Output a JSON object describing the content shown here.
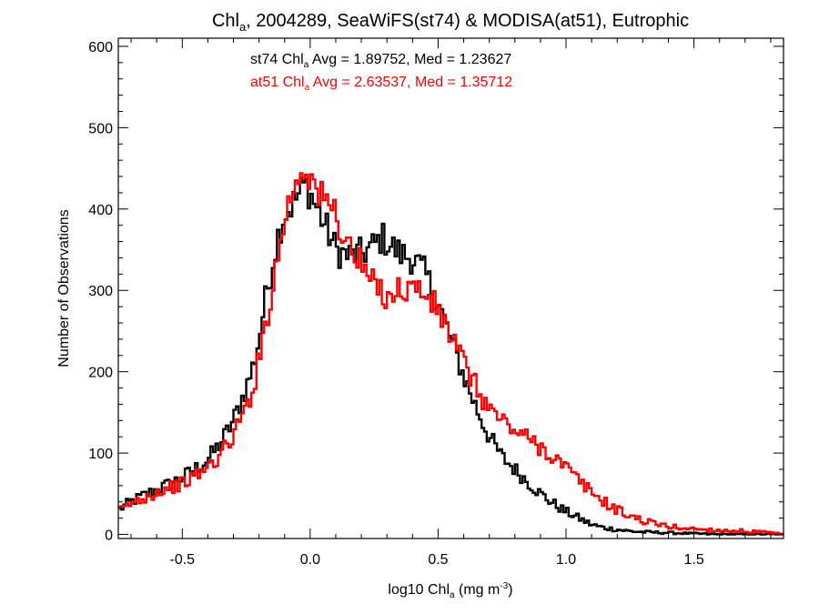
{
  "chart_data": {
    "type": "histogram",
    "title": {
      "prefix": "Chl",
      "sub": "a",
      "suffix": ", 2004289, SeaWiFS(st74) & MODISA(at51), Eutrophic"
    },
    "xlabel": {
      "prefix": "log10 Chl",
      "sub": "a",
      "mid": " (mg m",
      "sup": "-3",
      "suffix": ")"
    },
    "ylabel": "Number of Observations",
    "xlim": [
      -0.75,
      1.85
    ],
    "ylim": [
      -5,
      610
    ],
    "x_ticks": [
      -0.5,
      0.0,
      0.5,
      1.0,
      1.5
    ],
    "x_tick_labels": [
      "-0.5",
      "0.0",
      "0.5",
      "1.0",
      "1.5"
    ],
    "y_ticks": [
      0,
      100,
      200,
      300,
      400,
      500,
      600
    ],
    "y_tick_labels": [
      "0",
      "100",
      "200",
      "300",
      "400",
      "500",
      "600"
    ],
    "annotations": [
      {
        "color": "#000000",
        "prefix": "st74 Chl",
        "sub": "a",
        "suffix": " Avg = 1.89752, Med = 1.23627"
      },
      {
        "color": "#ff0000",
        "prefix": "at51 Chl",
        "sub": "a",
        "suffix": " Avg = 2.63537, Med = 1.35712"
      }
    ],
    "bin_width": 0.01,
    "series": [
      {
        "color": "#000000",
        "points": [
          [
            -0.75,
            30
          ],
          [
            -0.7,
            40
          ],
          [
            -0.65,
            48
          ],
          [
            -0.6,
            55
          ],
          [
            -0.55,
            62
          ],
          [
            -0.5,
            70
          ],
          [
            -0.45,
            80
          ],
          [
            -0.4,
            92
          ],
          [
            -0.35,
            112
          ],
          [
            -0.3,
            140
          ],
          [
            -0.25,
            180
          ],
          [
            -0.22,
            210
          ],
          [
            -0.2,
            240
          ],
          [
            -0.18,
            280
          ],
          [
            -0.15,
            330
          ],
          [
            -0.12,
            375
          ],
          [
            -0.1,
            395
          ],
          [
            -0.07,
            405
          ],
          [
            -0.04,
            420
          ],
          [
            -0.02,
            430
          ],
          [
            0.0,
            420
          ],
          [
            0.02,
            405
          ],
          [
            0.05,
            385
          ],
          [
            0.08,
            365
          ],
          [
            0.1,
            350
          ],
          [
            0.15,
            342
          ],
          [
            0.2,
            345
          ],
          [
            0.25,
            355
          ],
          [
            0.28,
            365
          ],
          [
            0.3,
            360
          ],
          [
            0.35,
            345
          ],
          [
            0.4,
            340
          ],
          [
            0.45,
            320
          ],
          [
            0.5,
            285
          ],
          [
            0.55,
            240
          ],
          [
            0.6,
            195
          ],
          [
            0.65,
            155
          ],
          [
            0.7,
            120
          ],
          [
            0.75,
            95
          ],
          [
            0.8,
            80
          ],
          [
            0.85,
            65
          ],
          [
            0.9,
            50
          ],
          [
            0.95,
            38
          ],
          [
            1.0,
            28
          ],
          [
            1.05,
            20
          ],
          [
            1.1,
            12
          ],
          [
            1.15,
            8
          ],
          [
            1.2,
            6
          ],
          [
            1.25,
            4
          ],
          [
            1.3,
            3
          ],
          [
            1.4,
            2
          ],
          [
            1.5,
            1
          ],
          [
            1.6,
            0
          ],
          [
            1.85,
            0
          ]
        ]
      },
      {
        "color": "#ff0000",
        "points": [
          [
            -0.75,
            28
          ],
          [
            -0.7,
            38
          ],
          [
            -0.65,
            45
          ],
          [
            -0.6,
            52
          ],
          [
            -0.55,
            58
          ],
          [
            -0.5,
            62
          ],
          [
            -0.45,
            72
          ],
          [
            -0.4,
            82
          ],
          [
            -0.35,
            98
          ],
          [
            -0.3,
            122
          ],
          [
            -0.25,
            155
          ],
          [
            -0.22,
            185
          ],
          [
            -0.2,
            215
          ],
          [
            -0.18,
            250
          ],
          [
            -0.15,
            300
          ],
          [
            -0.12,
            350
          ],
          [
            -0.1,
            390
          ],
          [
            -0.07,
            420
          ],
          [
            -0.05,
            440
          ],
          [
            -0.02,
            455
          ],
          [
            0.0,
            440
          ],
          [
            0.03,
            420
          ],
          [
            0.05,
            410
          ],
          [
            0.08,
            405
          ],
          [
            0.1,
            395
          ],
          [
            0.12,
            375
          ],
          [
            0.15,
            355
          ],
          [
            0.2,
            330
          ],
          [
            0.25,
            305
          ],
          [
            0.3,
            295
          ],
          [
            0.35,
            300
          ],
          [
            0.4,
            305
          ],
          [
            0.45,
            295
          ],
          [
            0.5,
            275
          ],
          [
            0.55,
            245
          ],
          [
            0.6,
            210
          ],
          [
            0.65,
            180
          ],
          [
            0.7,
            155
          ],
          [
            0.75,
            140
          ],
          [
            0.8,
            128
          ],
          [
            0.85,
            118
          ],
          [
            0.9,
            108
          ],
          [
            0.95,
            96
          ],
          [
            1.0,
            82
          ],
          [
            1.05,
            66
          ],
          [
            1.1,
            52
          ],
          [
            1.15,
            40
          ],
          [
            1.2,
            30
          ],
          [
            1.25,
            23
          ],
          [
            1.3,
            17
          ],
          [
            1.35,
            13
          ],
          [
            1.4,
            10
          ],
          [
            1.45,
            8
          ],
          [
            1.5,
            7
          ],
          [
            1.55,
            6
          ],
          [
            1.6,
            5
          ],
          [
            1.7,
            4
          ],
          [
            1.8,
            2
          ],
          [
            1.85,
            0
          ]
        ]
      }
    ]
  }
}
